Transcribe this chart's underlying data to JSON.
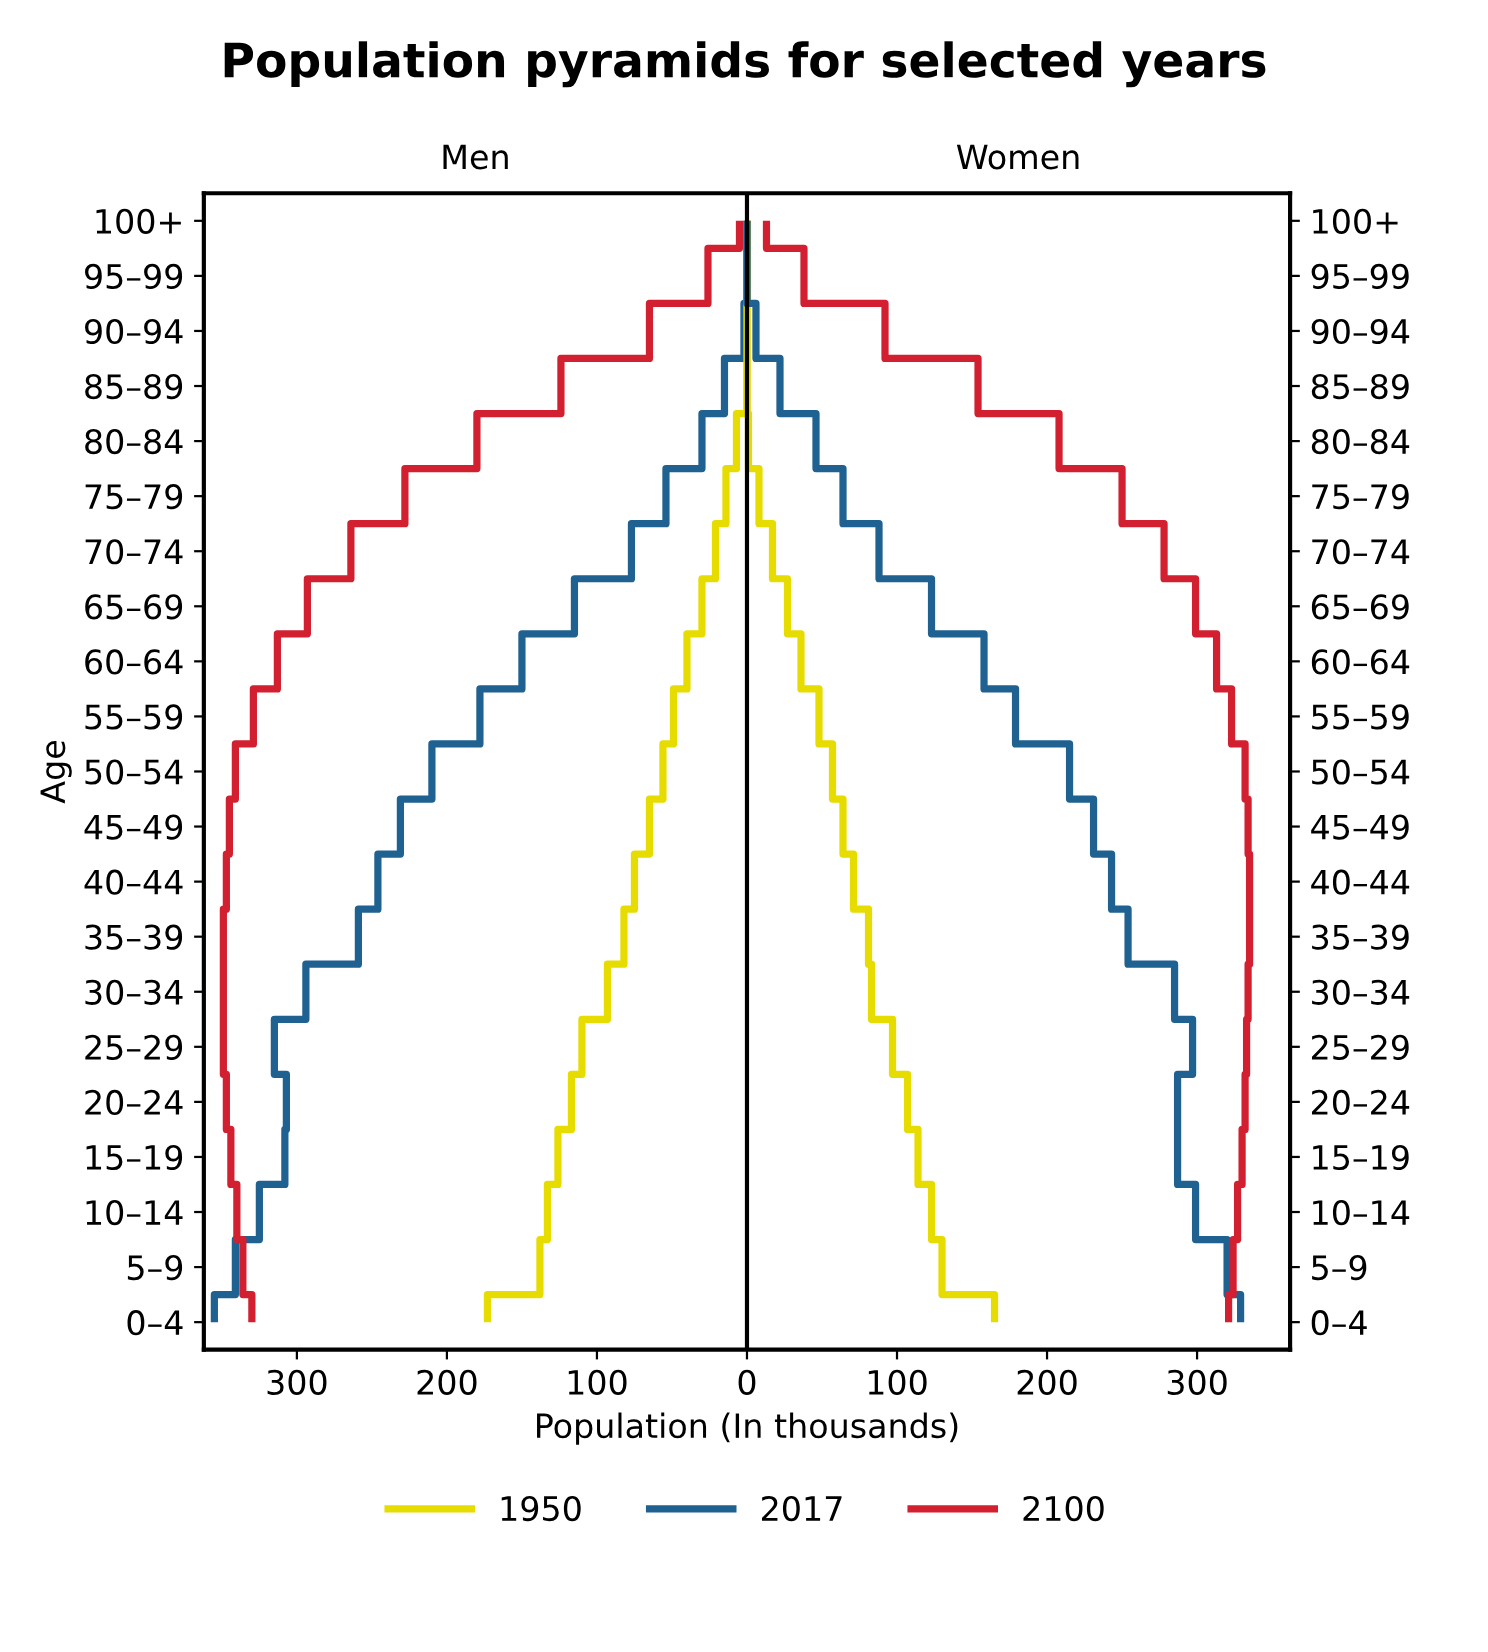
{
  "chart_data": {
    "type": "step",
    "orientation": "horizontal",
    "title": "Population pyramids for selected years",
    "xlabel": "Population (In thousands)",
    "ylabel": "Age",
    "categories": [
      "100+",
      "95–99",
      "90–94",
      "85–89",
      "80–84",
      "75–79",
      "70–74",
      "65–69",
      "60–64",
      "55–59",
      "50–54",
      "45–49",
      "40–44",
      "35–39",
      "30–34",
      "25–29",
      "20–24",
      "15–19",
      "10–14",
      "5–9",
      "0–4"
    ],
    "series": [
      {
        "color": "#e6dc00",
        "values": [
          0,
          0,
          0,
          0,
          -7,
          -14,
          -21,
          -30,
          -40,
          -49,
          -56,
          -65,
          -75,
          -82,
          -93,
          -110,
          -117,
          -126,
          -133,
          -138,
          -173
        ]
      },
      {
        "color": "#1f6190",
        "values": [
          0,
          0,
          -2,
          -15,
          -30,
          -54,
          -77,
          -115,
          -150,
          -178,
          -210,
          -231,
          -246,
          -259,
          -294,
          -315,
          -307,
          -308,
          -325,
          -341,
          -355
        ]
      },
      {
        "color": "#d22031",
        "values": [
          -5,
          -26,
          -65,
          -124,
          -180,
          -228,
          -264,
          -293,
          -313,
          -329,
          -341,
          -345,
          -347,
          -349,
          -349,
          -349,
          -347,
          -344,
          -340,
          -336,
          -330
        ]
      },
      {
        "name": "1950",
        "color": "#e6dc00",
        "values": [
          0,
          0,
          0,
          0,
          1,
          8,
          17,
          27,
          36,
          48,
          57,
          64,
          71,
          81,
          83,
          97,
          107,
          114,
          123,
          130,
          165
        ]
      },
      {
        "name": "2017",
        "color": "#1f6190",
        "values": [
          0,
          0,
          6,
          22,
          46,
          64,
          88,
          123,
          158,
          179,
          215,
          231,
          243,
          254,
          285,
          297,
          287,
          287,
          299,
          320,
          329
        ]
      },
      {
        "name": "2100",
        "color": "#d22031",
        "values": [
          13,
          38,
          92,
          154,
          208,
          250,
          278,
          299,
          313,
          323,
          332,
          334,
          335,
          335,
          334,
          333,
          332,
          330,
          327,
          324,
          321
        ]
      }
    ],
    "xlim": [
      -362,
      362
    ],
    "xticks": [
      {
        "value": -300,
        "label": "300"
      },
      {
        "value": -200,
        "label": "200"
      },
      {
        "value": -100,
        "label": "100"
      },
      0,
      100,
      200,
      300
    ],
    "ref_lines": [
      {
        "axis": "x",
        "value": 0,
        "color": "#000000"
      }
    ],
    "annotations": [
      "Men",
      "Women"
    ],
    "grid": false,
    "legend": "bottom",
    "line_style": "solid"
  }
}
